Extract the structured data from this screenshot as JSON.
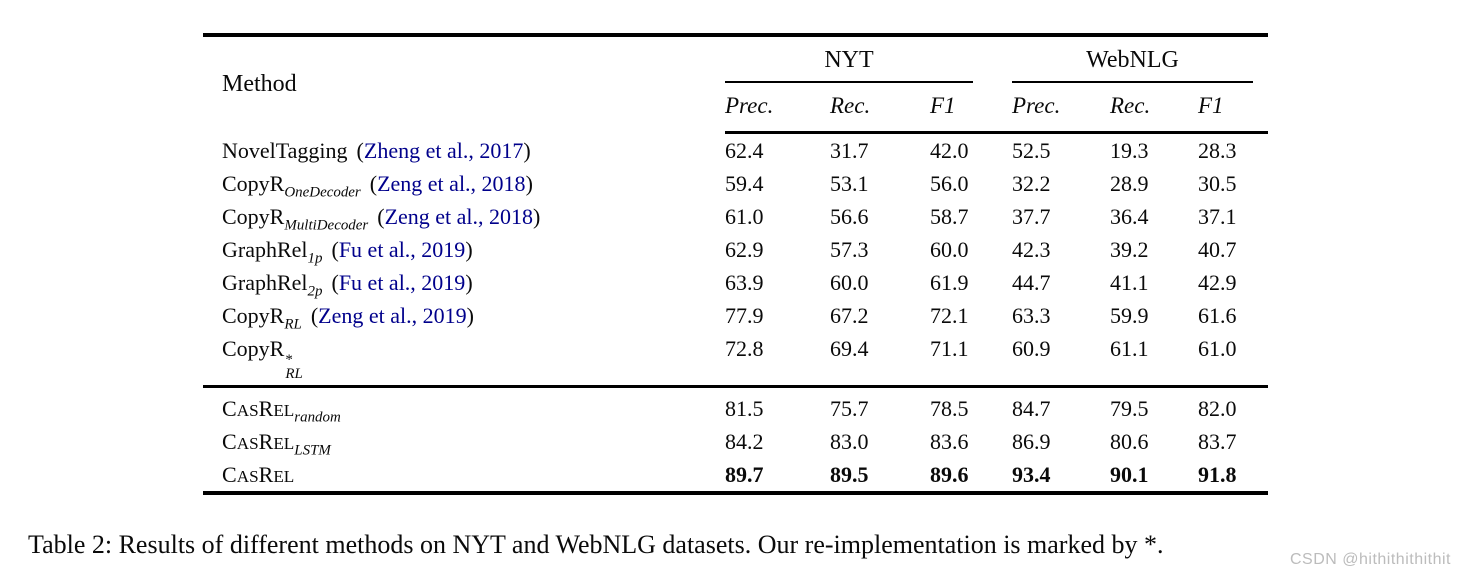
{
  "colors": {
    "citation_blue": "#00008B",
    "text": "#0a0a0a",
    "rule": "#000000",
    "watermark_gray": "#bcbcbc"
  },
  "table": {
    "method_header": "Method",
    "groups": [
      {
        "label": "NYT",
        "subcols": [
          "Prec.",
          "Rec.",
          "F1"
        ]
      },
      {
        "label": "WebNLG",
        "subcols": [
          "Prec.",
          "Rec.",
          "F1"
        ]
      }
    ],
    "sections": [
      {
        "rows": [
          {
            "method": {
              "base": "NovelTagging",
              "sub": "",
              "sup": "",
              "smallcaps": false,
              "cite": "(Zheng et al., 2017)"
            },
            "values": [
              "62.4",
              "31.7",
              "42.0",
              "52.5",
              "19.3",
              "28.3"
            ],
            "bold": false
          },
          {
            "method": {
              "base": "CopyR",
              "sub": "OneDecoder",
              "sup": "",
              "smallcaps": false,
              "cite": "(Zeng et al., 2018)"
            },
            "values": [
              "59.4",
              "53.1",
              "56.0",
              "32.2",
              "28.9",
              "30.5"
            ],
            "bold": false
          },
          {
            "method": {
              "base": "CopyR",
              "sub": "MultiDecoder",
              "sup": "",
              "smallcaps": false,
              "cite": "(Zeng et al., 2018)"
            },
            "values": [
              "61.0",
              "56.6",
              "58.7",
              "37.7",
              "36.4",
              "37.1"
            ],
            "bold": false
          },
          {
            "method": {
              "base": "GraphRel",
              "sub": "1p",
              "sup": "",
              "smallcaps": false,
              "cite": "(Fu et al., 2019)"
            },
            "values": [
              "62.9",
              "57.3",
              "60.0",
              "42.3",
              "39.2",
              "40.7"
            ],
            "bold": false
          },
          {
            "method": {
              "base": "GraphRel",
              "sub": "2p",
              "sup": "",
              "smallcaps": false,
              "cite": "(Fu et al., 2019)"
            },
            "values": [
              "63.9",
              "60.0",
              "61.9",
              "44.7",
              "41.1",
              "42.9"
            ],
            "bold": false
          },
          {
            "method": {
              "base": "CopyR",
              "sub": "RL",
              "sup": "",
              "smallcaps": false,
              "cite": "(Zeng et al., 2019)"
            },
            "values": [
              "77.9",
              "67.2",
              "72.1",
              "63.3",
              "59.9",
              "61.6"
            ],
            "bold": false
          },
          {
            "method": {
              "base": "CopyR",
              "sub": "RL",
              "sup": "*",
              "smallcaps": false,
              "cite": ""
            },
            "values": [
              "72.8",
              "69.4",
              "71.1",
              "60.9",
              "61.1",
              "61.0"
            ],
            "bold": false
          }
        ]
      },
      {
        "rows": [
          {
            "method": {
              "base": "CasRel",
              "sub": "random",
              "sup": "",
              "smallcaps": true,
              "cite": ""
            },
            "values": [
              "81.5",
              "75.7",
              "78.5",
              "84.7",
              "79.5",
              "82.0"
            ],
            "bold": false
          },
          {
            "method": {
              "base": "CasRel",
              "sub": "LSTM",
              "sup": "",
              "smallcaps": true,
              "cite": ""
            },
            "values": [
              "84.2",
              "83.0",
              "83.6",
              "86.9",
              "80.6",
              "83.7"
            ],
            "bold": false
          },
          {
            "method": {
              "base": "CasRel",
              "sub": "",
              "sup": "",
              "smallcaps": true,
              "cite": ""
            },
            "values": [
              "89.7",
              "89.5",
              "89.6",
              "93.4",
              "90.1",
              "91.8"
            ],
            "bold": true
          }
        ]
      }
    ]
  },
  "caption": "Table 2: Results of different methods on NYT and WebNLG datasets. Our re-implementation is marked by *.",
  "watermark": "CSDN @hithithithithit"
}
